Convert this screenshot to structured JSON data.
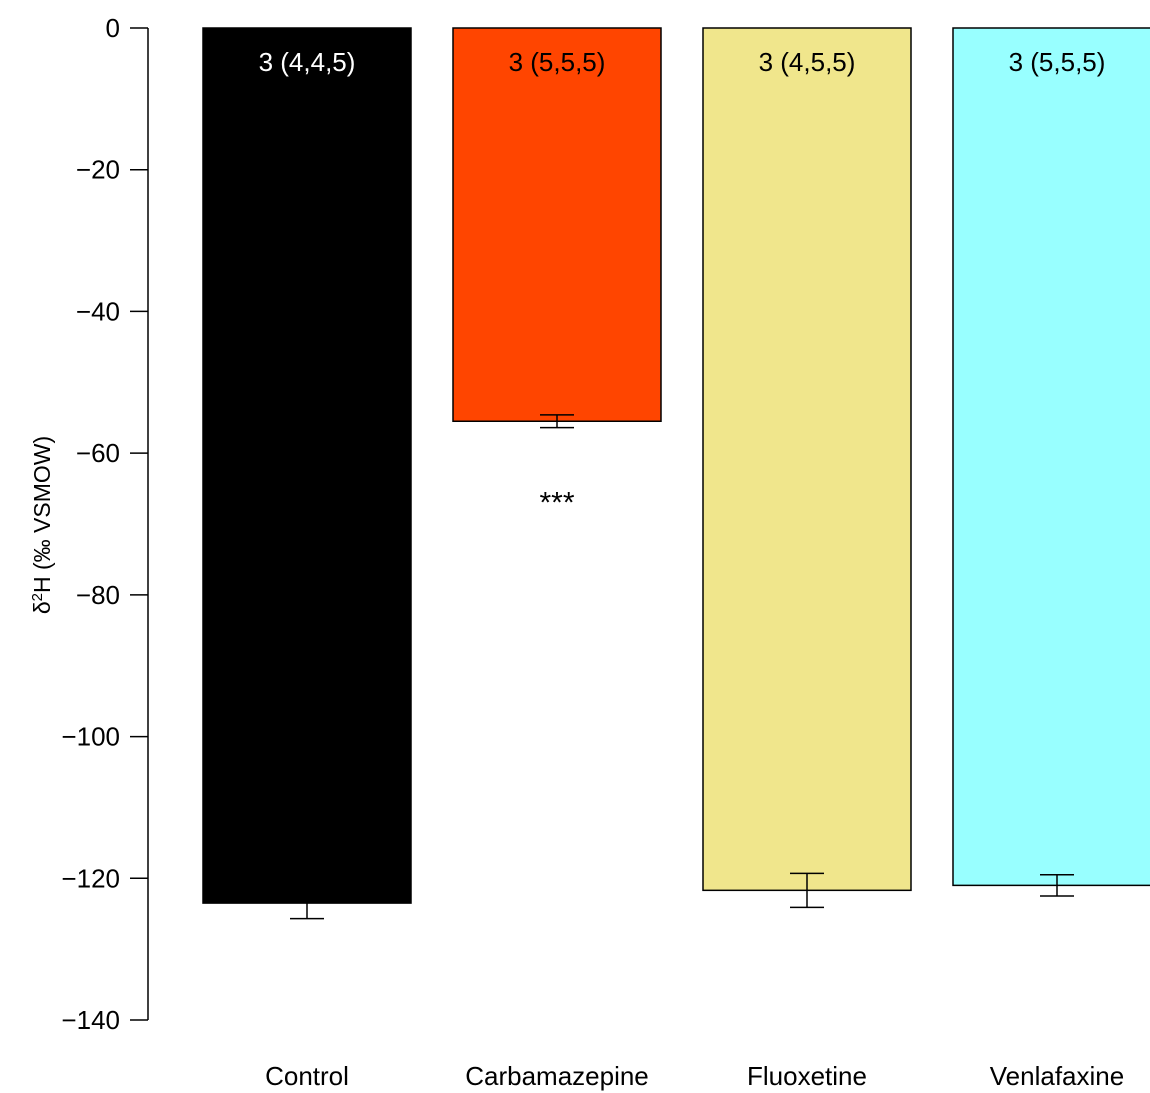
{
  "chart_data": {
    "type": "bar",
    "categories": [
      "Control",
      "Carbamazepine",
      "Fluoxetine",
      "Venlafaxine"
    ],
    "values": [
      -123.5,
      -55.5,
      -121.7,
      -121.0
    ],
    "error": [
      2.2,
      0.9,
      2.4,
      1.5
    ],
    "bar_labels": [
      "3 (4,4,5)",
      "3 (5,5,5)",
      "3 (4,5,5)",
      "3 (5,5,5)"
    ],
    "significance": [
      "",
      "***",
      "",
      ""
    ],
    "colors": [
      "#000000",
      "#ff4500",
      "#f0e68c",
      "#98ffff"
    ],
    "bar_label_colors": [
      "#ffffff",
      "#000000",
      "#000000",
      "#000000"
    ],
    "ylabel_parts": [
      "δ",
      "2",
      "H (‰ VSMOW)"
    ],
    "ylim": [
      -140,
      0
    ],
    "yticks": [
      0,
      -20,
      -40,
      -60,
      -80,
      -100,
      -120,
      -140
    ],
    "ytick_labels": [
      "0",
      "−20",
      "−40",
      "−60",
      "−80",
      "−100",
      "−120",
      "−140"
    ],
    "grid": false
  }
}
